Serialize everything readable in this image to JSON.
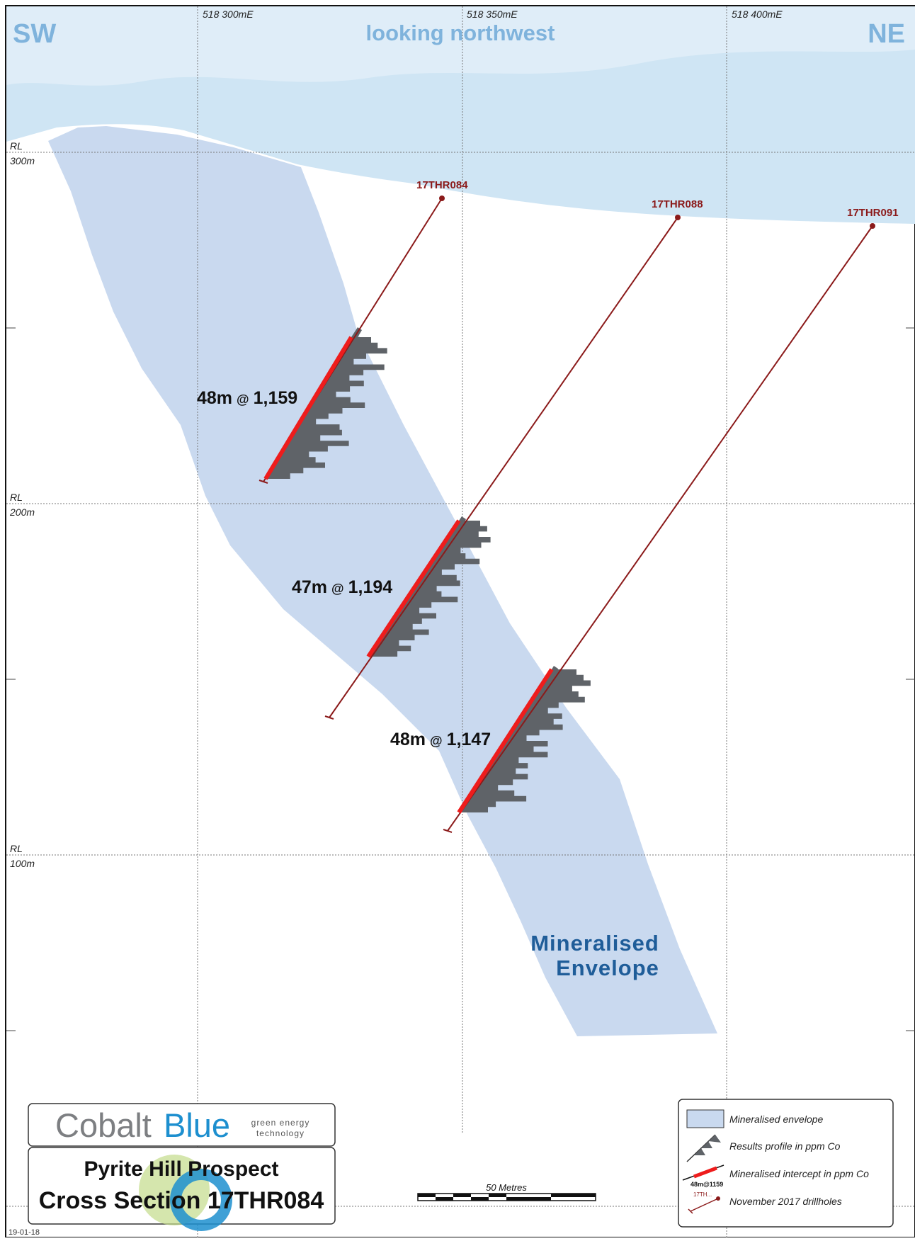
{
  "orientation": {
    "left": "SW",
    "right": "NE",
    "view": "looking northwest"
  },
  "grid": {
    "eastings": [
      "518 300mE",
      "518 350mE",
      "518 400mE"
    ],
    "levels": [
      {
        "rl": "RL",
        "value": "300m"
      },
      {
        "rl": "RL",
        "value": "200m"
      },
      {
        "rl": "RL",
        "value": "100m"
      }
    ]
  },
  "drillholes": [
    {
      "id": "17THR084",
      "intercept_len": "48m",
      "intercept_at": "@",
      "intercept_grade": "1,159"
    },
    {
      "id": "17THR088",
      "intercept_len": "47m",
      "intercept_at": "@",
      "intercept_grade": "1,194"
    },
    {
      "id": "17THR091",
      "intercept_len": "48m",
      "intercept_at": "@",
      "intercept_grade": "1,147"
    }
  ],
  "envelope_label": [
    "Mineralised",
    "Envelope"
  ],
  "logo": {
    "cobalt": "Cobalt",
    "blue": "Blue",
    "tagline_1": "green energy",
    "tagline_2": "technology"
  },
  "title": {
    "line1": "Pyrite Hill Prospect",
    "line2": "Cross Section 17THR084"
  },
  "scale_bar": {
    "label": "50 Metres"
  },
  "legend": {
    "items": [
      {
        "label": "Mineralised envelope",
        "icon": "envelope-swatch-icon"
      },
      {
        "label": "Results profile in ppm Co",
        "icon": "results-profile-icon"
      },
      {
        "label": "Mineralised intercept in ppm Co",
        "icon": "intercept-icon",
        "sample": "48m@1159"
      },
      {
        "label": "November 2017 drillholes",
        "icon": "drillhole-icon",
        "sample": "17TH..."
      }
    ]
  },
  "date": "19-01-18",
  "colors": {
    "sky": "#cfe5f4",
    "envelope": "#c9d9ef",
    "drillhole": "#8b1a1a",
    "intercept": "#ee1c1c",
    "profile": "#5f6368",
    "logo_grey": "#7d7f82",
    "logo_blue": "#1d8fcf"
  }
}
